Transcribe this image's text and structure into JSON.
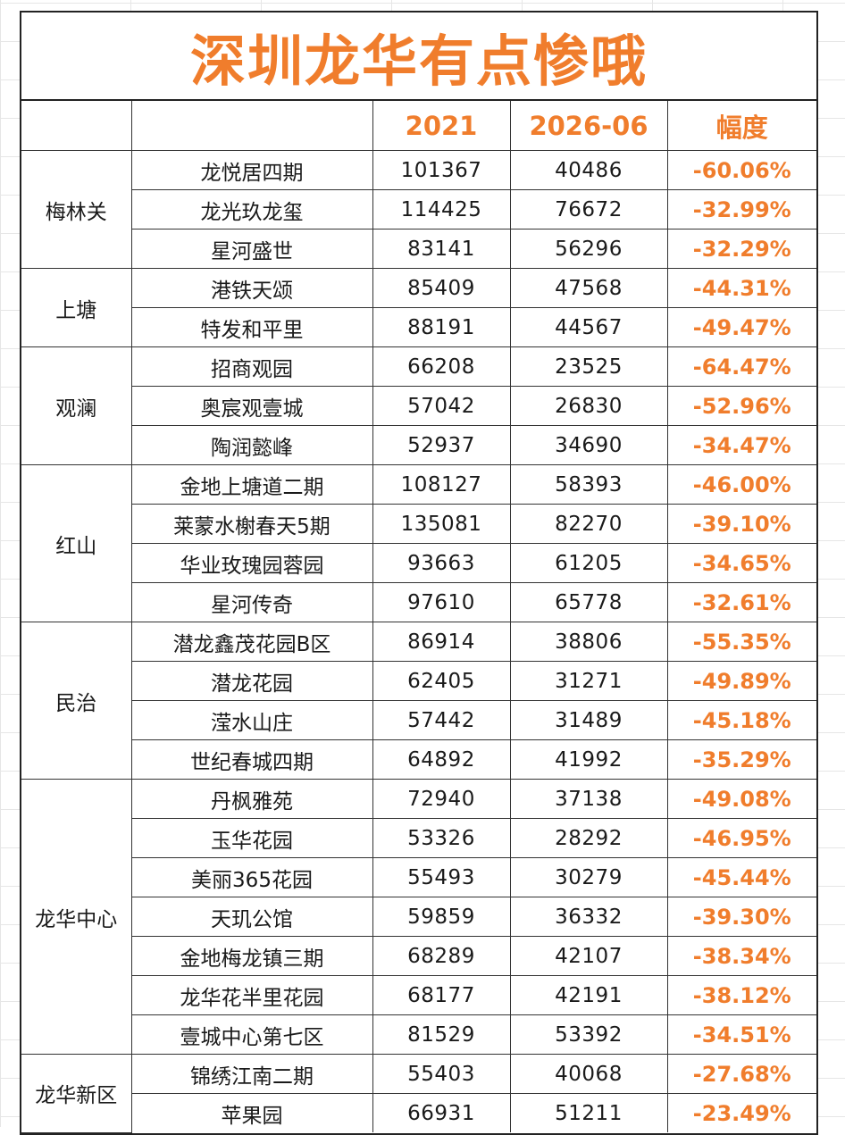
{
  "title": "深圳龙华有点惨哦",
  "header": {
    "area": "",
    "project": "",
    "year_2021": "2021",
    "year_2026": "2026-06",
    "change": "幅度"
  },
  "groups": [
    {
      "area": "梅林关",
      "rows": [
        {
          "name": "龙悦居四期",
          "p2021": "101367",
          "p2026": "40486",
          "change": "-60.06%"
        },
        {
          "name": "龙光玖龙玺",
          "p2021": "114425",
          "p2026": "76672",
          "change": "-32.99%"
        },
        {
          "name": "星河盛世",
          "p2021": "83141",
          "p2026": "56296",
          "change": "-32.29%"
        }
      ]
    },
    {
      "area": "上塘",
      "rows": [
        {
          "name": "港铁天颂",
          "p2021": "85409",
          "p2026": "47568",
          "change": "-44.31%"
        },
        {
          "name": "特发和平里",
          "p2021": "88191",
          "p2026": "44567",
          "change": "-49.47%"
        }
      ]
    },
    {
      "area": "观澜",
      "rows": [
        {
          "name": "招商观园",
          "p2021": "66208",
          "p2026": "23525",
          "change": "-64.47%"
        },
        {
          "name": "奥宸观壹城",
          "p2021": "57042",
          "p2026": "26830",
          "change": "-52.96%"
        },
        {
          "name": "陶润懿峰",
          "p2021": "52937",
          "p2026": "34690",
          "change": "-34.47%"
        }
      ]
    },
    {
      "area": "红山",
      "rows": [
        {
          "name": "金地上塘道二期",
          "p2021": "108127",
          "p2026": "58393",
          "change": "-46.00%"
        },
        {
          "name": "莱蒙水榭春天5期",
          "p2021": "135081",
          "p2026": "82270",
          "change": "-39.10%"
        },
        {
          "name": "华业玫瑰园蓉园",
          "p2021": "93663",
          "p2026": "61205",
          "change": "-34.65%"
        },
        {
          "name": "星河传奇",
          "p2021": "97610",
          "p2026": "65778",
          "change": "-32.61%"
        }
      ]
    },
    {
      "area": "民治",
      "rows": [
        {
          "name": "潜龙鑫茂花园B区",
          "p2021": "86914",
          "p2026": "38806",
          "change": "-55.35%"
        },
        {
          "name": "潜龙花园",
          "p2021": "62405",
          "p2026": "31271",
          "change": "-49.89%"
        },
        {
          "name": "滢水山庄",
          "p2021": "57442",
          "p2026": "31489",
          "change": "-45.18%"
        },
        {
          "name": "世纪春城四期",
          "p2021": "64892",
          "p2026": "41992",
          "change": "-35.29%"
        }
      ]
    },
    {
      "area": "龙华中心",
      "rows": [
        {
          "name": "丹枫雅苑",
          "p2021": "72940",
          "p2026": "37138",
          "change": "-49.08%"
        },
        {
          "name": "玉华花园",
          "p2021": "53326",
          "p2026": "28292",
          "change": "-46.95%"
        },
        {
          "name": "美丽365花园",
          "p2021": "55493",
          "p2026": "30279",
          "change": "-45.44%"
        },
        {
          "name": "天玑公馆",
          "p2021": "59859",
          "p2026": "36332",
          "change": "-39.30%"
        },
        {
          "name": "金地梅龙镇三期",
          "p2021": "68289",
          "p2026": "42107",
          "change": "-38.34%"
        },
        {
          "name": "龙华花半里花园",
          "p2021": "68177",
          "p2026": "42191",
          "change": "-38.12%"
        },
        {
          "name": "壹城中心第七区",
          "p2021": "81529",
          "p2026": "53392",
          "change": "-34.51%"
        }
      ]
    },
    {
      "area": "龙华新区",
      "rows": [
        {
          "name": "锦绣江南二期",
          "p2021": "55403",
          "p2026": "40068",
          "change": "-27.68%"
        },
        {
          "name": "苹果园",
          "p2021": "66931",
          "p2026": "51211",
          "change": "-23.49%"
        }
      ]
    }
  ],
  "colors": {
    "accent": "#f07d2c",
    "grid": "#333333"
  }
}
